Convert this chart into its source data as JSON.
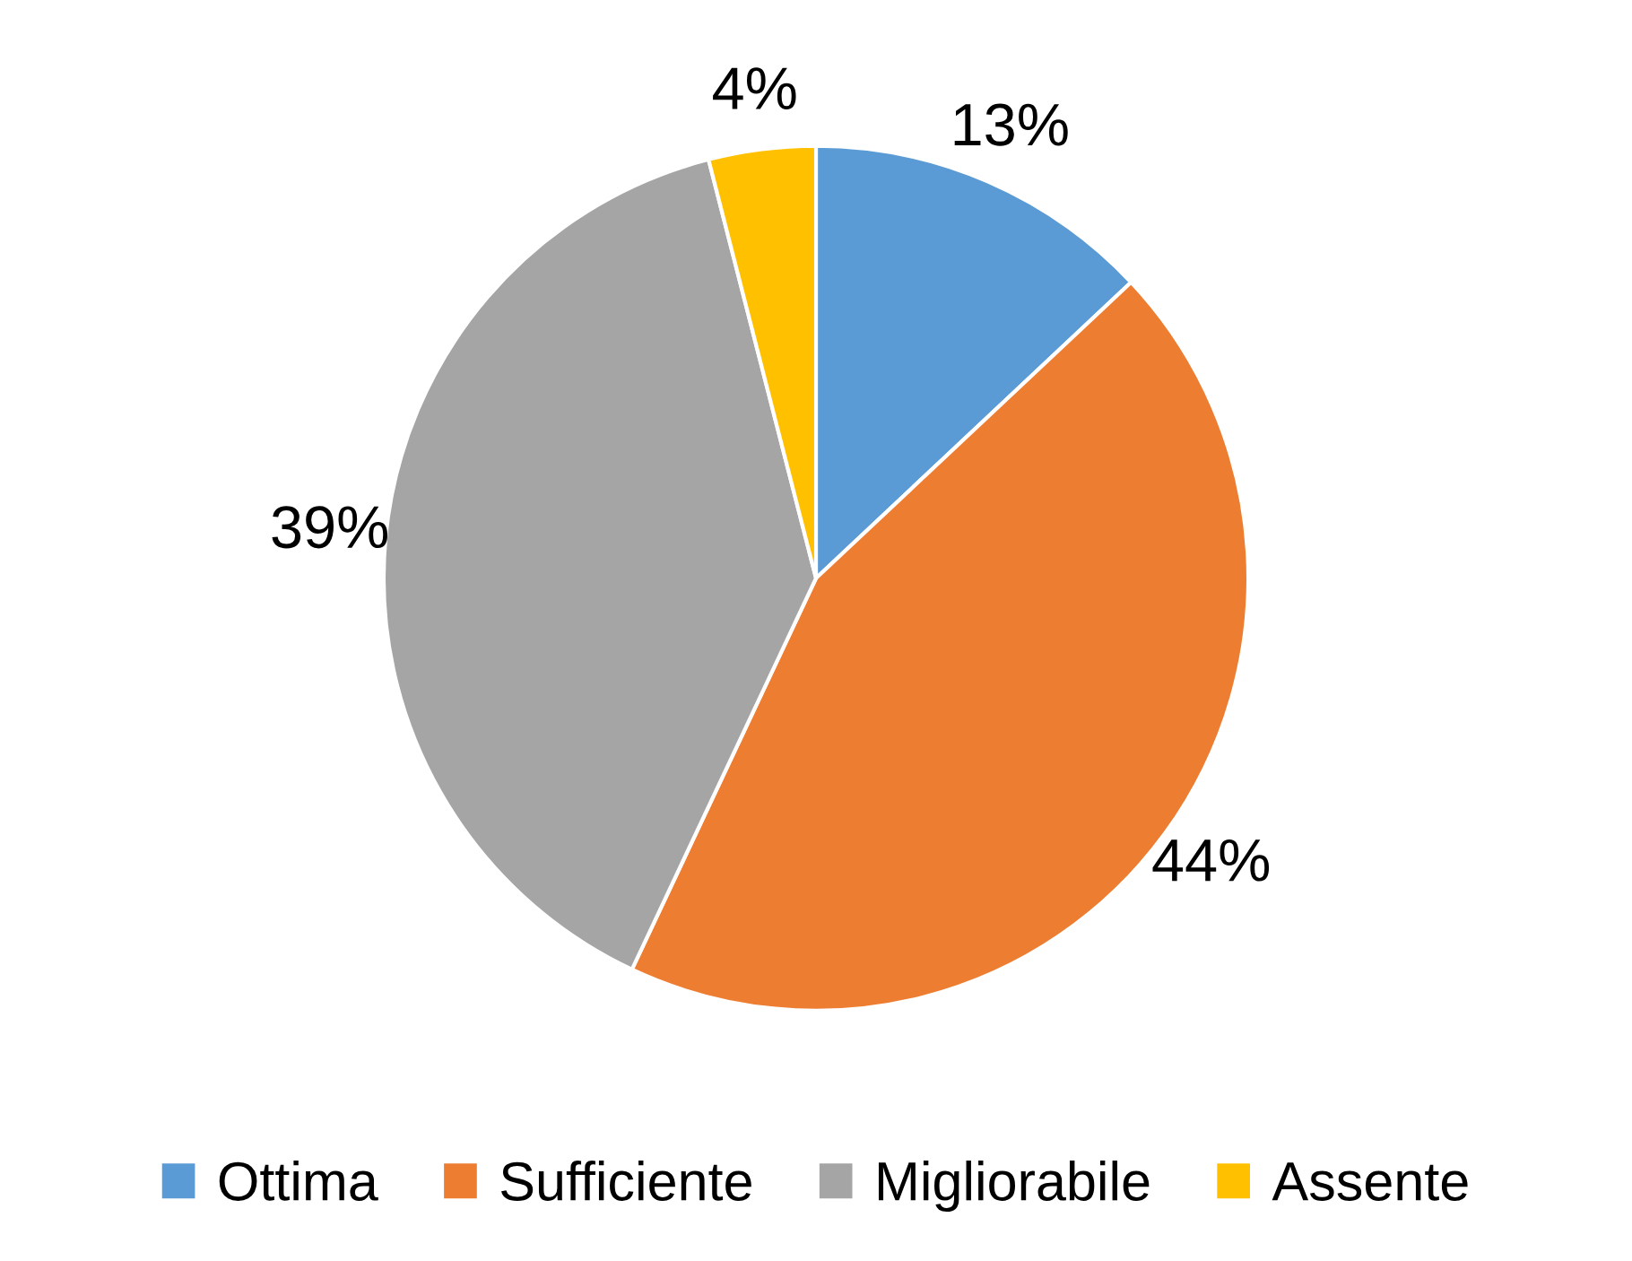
{
  "chart_data": {
    "type": "pie",
    "categories": [
      "Ottima",
      "Sufficiente",
      "Migliorabile",
      "Assente"
    ],
    "values": [
      13,
      44,
      39,
      4
    ],
    "colors": [
      "#5b9bd5",
      "#ed7d31",
      "#a5a5a5",
      "#ffc000"
    ],
    "value_labels": [
      "13%",
      "44%",
      "39%",
      "4%"
    ],
    "legend": "bottom"
  }
}
